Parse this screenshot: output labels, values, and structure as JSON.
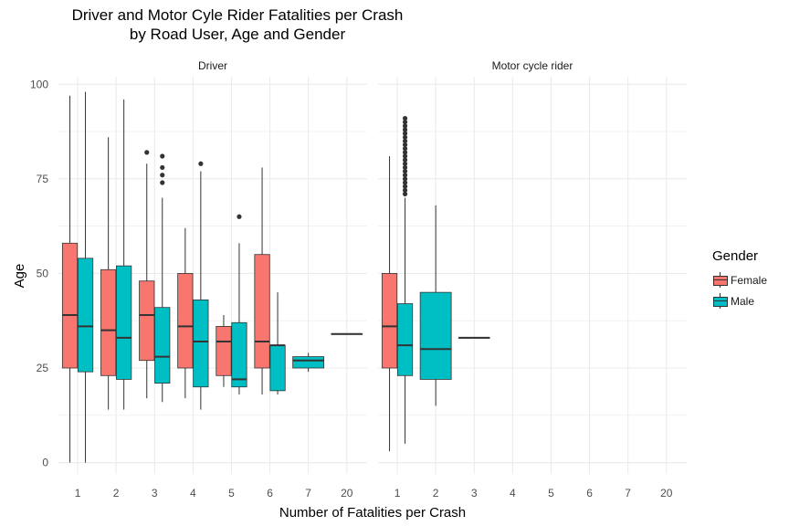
{
  "title_line1": "Driver and Motor Cyle Rider Fatalities per Crash",
  "title_line2": "by Road User, Age and Gender",
  "colors": {
    "female": "#F8766D",
    "male": "#00BFC4"
  },
  "legend": {
    "title": "Gender",
    "items": [
      {
        "label": "Female",
        "color": "#F8766D"
      },
      {
        "label": "Male",
        "color": "#00BFC4"
      }
    ]
  },
  "chart_data": {
    "type": "boxplot",
    "xlabel": "Number of Fatalities per Crash",
    "ylabel": "Age",
    "ylim": [
      -3,
      102
    ],
    "yticks": [
      0,
      25,
      50,
      75,
      100
    ],
    "categories": [
      "1",
      "2",
      "3",
      "4",
      "5",
      "6",
      "7",
      "20"
    ],
    "grid": true,
    "legend_position": "right",
    "panels": [
      {
        "name": "Driver",
        "boxes": [
          {
            "category": "1",
            "gender": "Female",
            "min": 0,
            "q1": 25,
            "median": 39,
            "q3": 58,
            "max": 97,
            "outliers": []
          },
          {
            "category": "1",
            "gender": "Male",
            "min": 0,
            "q1": 24,
            "median": 36,
            "q3": 54,
            "max": 98,
            "outliers": []
          },
          {
            "category": "2",
            "gender": "Female",
            "min": 14,
            "q1": 23,
            "median": 35,
            "q3": 51,
            "max": 86,
            "outliers": []
          },
          {
            "category": "2",
            "gender": "Male",
            "min": 14,
            "q1": 22,
            "median": 33,
            "q3": 52,
            "max": 96,
            "outliers": []
          },
          {
            "category": "3",
            "gender": "Female",
            "min": 17,
            "q1": 27,
            "median": 39,
            "q3": 48,
            "max": 79,
            "outliers": [
              82
            ]
          },
          {
            "category": "3",
            "gender": "Male",
            "min": 16,
            "q1": 21,
            "median": 28,
            "q3": 41,
            "max": 70,
            "outliers": [
              74,
              76,
              78,
              81
            ]
          },
          {
            "category": "4",
            "gender": "Female",
            "min": 17,
            "q1": 25,
            "median": 36,
            "q3": 50,
            "max": 62,
            "outliers": []
          },
          {
            "category": "4",
            "gender": "Male",
            "min": 14,
            "q1": 20,
            "median": 32,
            "q3": 43,
            "max": 77,
            "outliers": [
              79
            ]
          },
          {
            "category": "5",
            "gender": "Female",
            "min": 20,
            "q1": 23,
            "median": 32,
            "q3": 36,
            "max": 39,
            "outliers": []
          },
          {
            "category": "5",
            "gender": "Male",
            "min": 18,
            "q1": 20,
            "median": 22,
            "q3": 37,
            "max": 58,
            "outliers": [
              65
            ]
          },
          {
            "category": "6",
            "gender": "Female",
            "min": 18,
            "q1": 25,
            "median": 32,
            "q3": 55,
            "max": 78,
            "outliers": []
          },
          {
            "category": "6",
            "gender": "Male",
            "min": 18,
            "q1": 19,
            "median": 31,
            "q3": 31,
            "max": 45,
            "outliers": []
          },
          {
            "category": "7",
            "gender": "Male",
            "min": 24,
            "q1": 25,
            "median": 27,
            "q3": 28,
            "max": 29,
            "outliers": [],
            "full_width": true
          },
          {
            "category": "20",
            "gender": "Male",
            "min": 34,
            "q1": 34,
            "median": 34,
            "q3": 34,
            "max": 34,
            "outliers": [],
            "full_width": true
          }
        ]
      },
      {
        "name": "Motor cycle rider",
        "boxes": [
          {
            "category": "1",
            "gender": "Female",
            "min": 3,
            "q1": 25,
            "median": 36,
            "q3": 50,
            "max": 81,
            "outliers": []
          },
          {
            "category": "1",
            "gender": "Male",
            "min": 5,
            "q1": 23,
            "median": 31,
            "q3": 42,
            "max": 70,
            "outliers": [
              71,
              72,
              73,
              74,
              75,
              76,
              77,
              78,
              79,
              80,
              81,
              82,
              83,
              84,
              85,
              86,
              87,
              88,
              89,
              90,
              91
            ]
          },
          {
            "category": "2",
            "gender": "Male",
            "min": 15,
            "q1": 22,
            "median": 30,
            "q3": 45,
            "max": 68,
            "outliers": [],
            "full_width": true
          },
          {
            "category": "3",
            "gender": "Male",
            "min": 33,
            "q1": 33,
            "median": 33,
            "q3": 33,
            "max": 33,
            "outliers": [],
            "full_width": true
          }
        ]
      }
    ]
  }
}
